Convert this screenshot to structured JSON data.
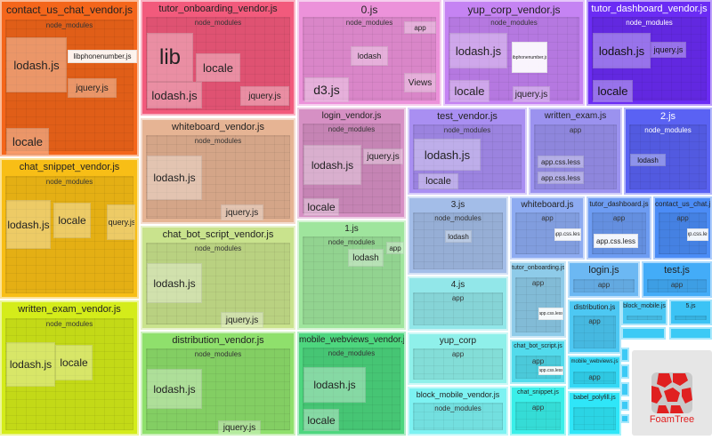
{
  "groups": [
    {
      "title": "contact_us_chat_vendor.js",
      "color": "#f4661b",
      "sub": "node_modules",
      "labels": [
        "lodash.js",
        "libphonenumber.js",
        "jquery.js",
        "locale"
      ]
    },
    {
      "title": "chat_snippet_vendor.js",
      "color": "#f8be16",
      "sub": "node_modules",
      "labels": [
        "lodash.js",
        "locale",
        "jquery.js"
      ]
    },
    {
      "title": "written_exam_vendor.js",
      "color": "#d4ec1a",
      "sub": "node_modules",
      "labels": [
        "lodash.js",
        "locale"
      ]
    },
    {
      "title": "tutor_onboarding_vendor.js",
      "color": "#f25a7c",
      "sub": "node_modules",
      "labels": [
        "lib",
        "locale",
        "lodash.js",
        "jquery.js"
      ]
    },
    {
      "title": "whiteboard_vendor.js",
      "color": "#e6b494",
      "sub": "node_modules",
      "labels": [
        "lodash.js",
        "jquery.js"
      ]
    },
    {
      "title": "chat_bot_script_vendor.js",
      "color": "#c9e38d",
      "sub": "node_modules",
      "labels": [
        "lodash.js",
        "jquery.js"
      ]
    },
    {
      "title": "distribution_vendor.js",
      "color": "#8fe06c",
      "sub": "node_modules",
      "labels": [
        "lodash.js",
        "jquery.js"
      ]
    },
    {
      "title": "0.js",
      "color": "#ec92da",
      "sub": "node_modules",
      "labels": [
        "d3.js",
        "lodash",
        "app",
        "Views"
      ]
    },
    {
      "title": "login_vendor.js",
      "color": "#d690c4",
      "sub": "node_modules",
      "labels": [
        "lodash.js",
        "jquery.js",
        "locale"
      ]
    },
    {
      "title": "1.js",
      "color": "#9fe59d",
      "sub": "node_modules",
      "labels": [
        "lodash",
        "app"
      ]
    },
    {
      "title": "mobile_webviews_vendor.js",
      "color": "#4dd67e",
      "sub": "node_modules",
      "labels": [
        "lodash.js",
        "locale"
      ]
    },
    {
      "title": "yup_corp_vendor.js",
      "color": "#c583f3",
      "sub": "node_modules",
      "labels": [
        "lodash.js",
        "libphonenumber.js",
        "locale",
        "jquery.js"
      ]
    },
    {
      "title": "tutor_dashboard_vendor.js",
      "color": "#6b2cf4",
      "sub": "node_modules",
      "labels": [
        "lodash.js",
        "jquery.js",
        "locale"
      ],
      "dark": true
    },
    {
      "title": "test_vendor.js",
      "color": "#a98ff2",
      "sub": "node_modules",
      "labels": [
        "lodash.js",
        "locale"
      ]
    },
    {
      "title": "written_exam.js",
      "color": "#9b92ef",
      "sub": "app",
      "labels": [
        "app.css.less",
        "app.css.less"
      ]
    },
    {
      "title": "2.js",
      "color": "#5a62f3",
      "sub": "node_modules",
      "labels": [
        "lodash"
      ],
      "dark": true
    },
    {
      "title": "3.js",
      "color": "#a3bde8",
      "sub": "node_modules",
      "labels": [
        "lodash"
      ]
    },
    {
      "title": "4.js",
      "color": "#92e7e9",
      "sub": "app",
      "labels": []
    },
    {
      "title": "yup_corp",
      "color": "#8ff0ea",
      "sub": "app",
      "labels": []
    },
    {
      "title": "block_mobile_vendor.js",
      "color": "#7df2f2",
      "sub": "node_modules",
      "labels": []
    },
    {
      "title": "whiteboard.js",
      "color": "#8dabf1",
      "sub": "app",
      "labels": [
        "app.css.less"
      ]
    },
    {
      "title": "tutor_dashboard.js",
      "color": "#6d9cf2",
      "sub": "app",
      "labels": [
        "app.css.less"
      ]
    },
    {
      "title": "contact_us_chat.js",
      "color": "#4b8cf6",
      "sub": "app",
      "labels": [
        "app.css.less"
      ]
    },
    {
      "title": "tutor_onboarding.js",
      "color": "#8ecbe9",
      "sub": "app",
      "labels": [
        "app.css.less"
      ]
    },
    {
      "title": "login.js",
      "color": "#6cb8f3",
      "sub": "app",
      "labels": []
    },
    {
      "title": "test.js",
      "color": "#43acf8",
      "sub": "app",
      "labels": []
    },
    {
      "title": "distribution.js",
      "color": "#4dc8f3",
      "sub": "app",
      "labels": []
    },
    {
      "title": "block_mobile.js",
      "color": "#4ac8f3",
      "sub": "",
      "labels": []
    },
    {
      "title": "5.js",
      "color": "#3cc3f5",
      "sub": "",
      "labels": []
    },
    {
      "title": "chat_bot_script.js",
      "color": "#52dbec",
      "sub": "app",
      "labels": [
        "app.css.less"
      ]
    },
    {
      "title": "chat_snippet.js",
      "color": "#3aefe9",
      "sub": "app",
      "labels": []
    },
    {
      "title": "mobile_webviews.js",
      "color": "#34d8f5",
      "sub": "app",
      "labels": []
    },
    {
      "title": "babel_polyfill.js",
      "color": "#2fe6f8",
      "sub": "",
      "labels": []
    }
  ],
  "logo": {
    "text": "FoamTree",
    "color": "#e02020"
  }
}
